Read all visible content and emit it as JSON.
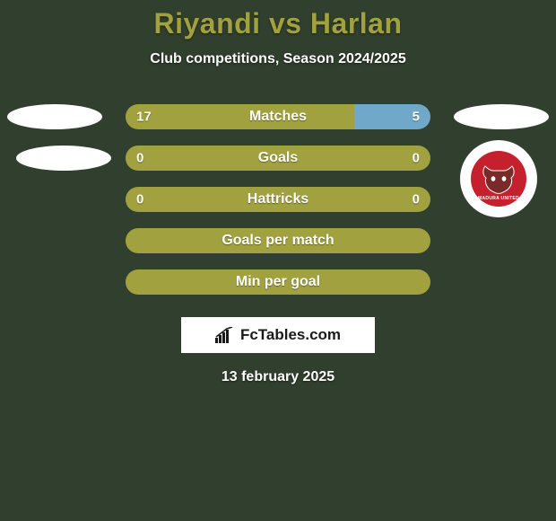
{
  "background_color": "#313f2e",
  "title": {
    "text": "Riyandi vs Harlan",
    "color": "#a2a13f",
    "fontsize": 32
  },
  "subtitle": "Club competitions, Season 2024/2025",
  "stats": [
    {
      "label": "Matches",
      "left_value": "17",
      "right_value": "5",
      "left_pct": 75,
      "left_color": "#a2a13f",
      "right_color": "#6fa8c9",
      "show_left_ellipse": true,
      "show_right_ellipse": true,
      "left_ellipse_shift": false
    },
    {
      "label": "Goals",
      "left_value": "0",
      "right_value": "0",
      "left_pct": 100,
      "left_color": "#a2a13f",
      "right_color": "#6fa8c9",
      "show_left_ellipse": true,
      "show_right_ellipse": false,
      "left_ellipse_shift": true
    },
    {
      "label": "Hattricks",
      "left_value": "0",
      "right_value": "0",
      "left_pct": 100,
      "left_color": "#a2a13f",
      "right_color": "#6fa8c9",
      "show_left_ellipse": false,
      "show_right_ellipse": false,
      "left_ellipse_shift": false
    },
    {
      "label": "Goals per match",
      "left_value": "",
      "right_value": "",
      "left_pct": 100,
      "left_color": "#a2a13f",
      "right_color": "#6fa8c9",
      "show_left_ellipse": false,
      "show_right_ellipse": false,
      "left_ellipse_shift": false
    },
    {
      "label": "Min per goal",
      "left_value": "",
      "right_value": "",
      "left_pct": 100,
      "left_color": "#a2a13f",
      "right_color": "#6fa8c9",
      "show_left_ellipse": false,
      "show_right_ellipse": false,
      "left_ellipse_shift": false
    }
  ],
  "badge": {
    "bg": "#c4202e",
    "label": "MADURA UNITED",
    "bull_fill": "#7b2a2a",
    "bull_outline": "#ffffff"
  },
  "brand": {
    "text": "FcTables.com",
    "icon_color": "#1a1a1a"
  },
  "date": "13 february 2025"
}
